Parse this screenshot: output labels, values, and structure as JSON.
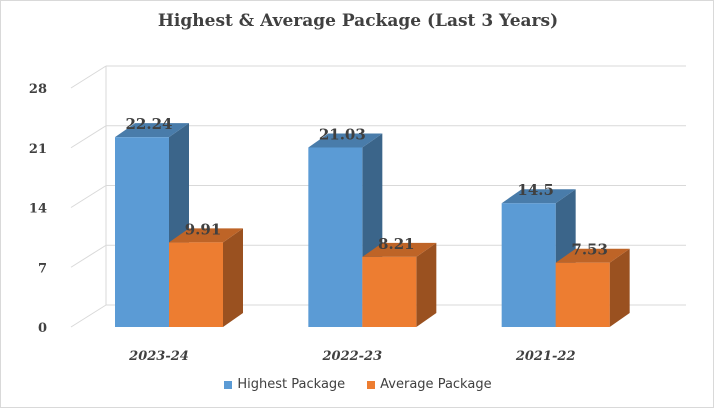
{
  "chart_data": {
    "type": "bar",
    "title": "Highest & Average Package (Last 3 Years)",
    "categories": [
      "2023-24",
      "2022-23",
      "2021-22"
    ],
    "series": [
      {
        "name": "Highest Package",
        "values": [
          22.24,
          21.03,
          14.5
        ],
        "labels": [
          "22.24",
          "21.03",
          "14.5"
        ],
        "color": "#5b9bd5"
      },
      {
        "name": "Average Package",
        "values": [
          9.91,
          8.21,
          7.53
        ],
        "labels": [
          "9.91",
          "8.21",
          "7.53"
        ],
        "color": "#ed7d31"
      }
    ],
    "yticks": [
      "0",
      "7",
      "14",
      "21",
      "28"
    ],
    "ylim": [
      0,
      28
    ],
    "grid": true,
    "legend_position": "bottom",
    "style": "3d-clustered-column"
  }
}
